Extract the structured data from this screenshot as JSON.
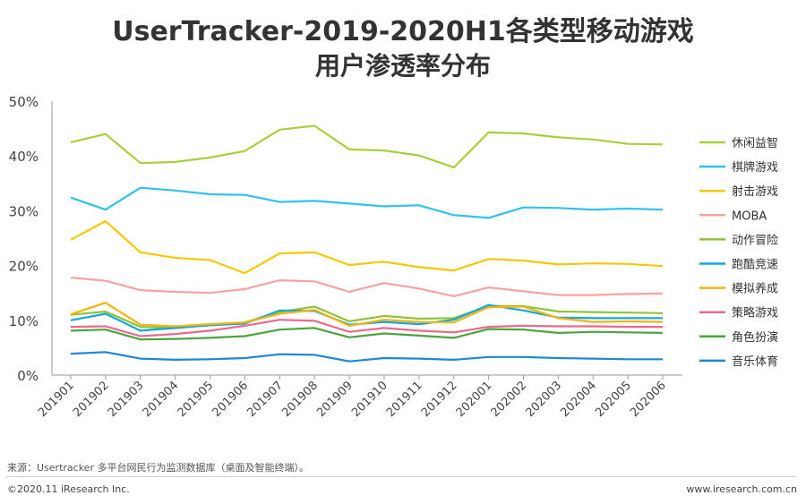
{
  "title_line1": "UserTracker-2019-2020H1各类型移动游戏",
  "title_line2": "用户渗透率分布",
  "source": "来源：Usertracker 多平台网民行为监测数据库（桌面及智能终端）。",
  "copyright": "©2020.11 iResearch Inc.",
  "website": "www.iresearch.com.cn",
  "chart_data": {
    "type": "line",
    "categories": [
      "201901",
      "201902",
      "201903",
      "201904",
      "201905",
      "201906",
      "201907",
      "201908",
      "201909",
      "201910",
      "201911",
      "201912",
      "202001",
      "202002",
      "202003",
      "202004",
      "202005",
      "202006"
    ],
    "ylim": [
      0,
      50
    ],
    "yticks": [
      "0%",
      "10%",
      "20%",
      "30%",
      "40%",
      "50%"
    ],
    "grid": false,
    "legend_position": "right",
    "series": [
      {
        "name": "休闲益智",
        "color": "#a9cf3c",
        "values": [
          42.5,
          44.0,
          38.7,
          38.9,
          39.7,
          40.9,
          44.8,
          45.5,
          41.2,
          41.0,
          40.1,
          37.9,
          44.3,
          44.1,
          43.4,
          43.0,
          42.2,
          42.1
        ]
      },
      {
        "name": "棋牌游戏",
        "color": "#2fc2ec",
        "values": [
          32.4,
          30.2,
          34.2,
          33.7,
          33.0,
          32.9,
          31.6,
          31.8,
          31.3,
          30.8,
          31.0,
          29.2,
          28.7,
          30.6,
          30.5,
          30.2,
          30.4,
          30.2
        ]
      },
      {
        "name": "射击游戏",
        "color": "#f5c800",
        "values": [
          24.7,
          28.1,
          22.4,
          21.4,
          21.0,
          18.6,
          22.2,
          22.4,
          20.1,
          20.7,
          19.7,
          19.1,
          21.2,
          20.9,
          20.2,
          20.4,
          20.3,
          19.9
        ]
      },
      {
        "name": "MOBA",
        "color": "#f5a3a0",
        "values": [
          17.8,
          17.2,
          15.5,
          15.2,
          15.0,
          15.7,
          17.3,
          17.1,
          15.2,
          16.8,
          15.8,
          14.4,
          16.0,
          15.3,
          14.6,
          14.6,
          14.8,
          14.9
        ]
      },
      {
        "name": "动作冒险",
        "color": "#8fc33a",
        "values": [
          11.0,
          11.6,
          8.8,
          8.6,
          9.1,
          9.6,
          11.5,
          12.5,
          9.8,
          10.8,
          10.3,
          10.4,
          12.6,
          12.6,
          11.6,
          11.5,
          11.4,
          11.3
        ]
      },
      {
        "name": "跑酷竞速",
        "color": "#11a8dd",
        "values": [
          10.0,
          11.2,
          8.1,
          8.6,
          9.1,
          9.4,
          11.8,
          11.7,
          9.2,
          9.7,
          9.3,
          10.1,
          12.8,
          11.8,
          10.5,
          10.4,
          10.4,
          10.4
        ]
      },
      {
        "name": "模拟养成",
        "color": "#f4b30e",
        "values": [
          11.1,
          13.2,
          9.2,
          8.9,
          9.3,
          9.6,
          11.2,
          11.9,
          9.0,
          10.1,
          9.7,
          9.6,
          12.4,
          12.5,
          10.4,
          9.7,
          9.8,
          9.7
        ]
      },
      {
        "name": "策略游戏",
        "color": "#ea6a8e",
        "values": [
          8.8,
          8.9,
          7.1,
          7.5,
          8.1,
          9.0,
          10.1,
          9.9,
          7.9,
          8.6,
          8.1,
          7.8,
          8.8,
          9.0,
          8.9,
          8.9,
          8.8,
          8.8
        ]
      },
      {
        "name": "角色扮演",
        "color": "#4aa53f",
        "values": [
          8.1,
          8.3,
          6.5,
          6.6,
          6.8,
          7.1,
          8.3,
          8.6,
          6.9,
          7.6,
          7.2,
          6.8,
          8.4,
          8.3,
          7.7,
          7.9,
          7.8,
          7.7
        ]
      },
      {
        "name": "音乐体育",
        "color": "#1f88d0",
        "values": [
          3.9,
          4.2,
          3.0,
          2.8,
          2.9,
          3.1,
          3.8,
          3.7,
          2.5,
          3.1,
          3.0,
          2.8,
          3.3,
          3.3,
          3.1,
          3.0,
          2.9,
          2.9
        ]
      }
    ]
  }
}
